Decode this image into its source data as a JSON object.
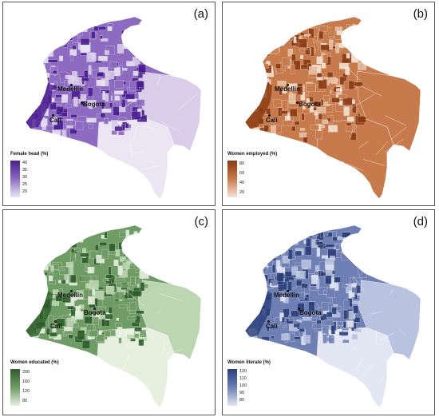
{
  "panels": [
    {
      "label": "(a)",
      "legend_title": "Female head (%)",
      "ticks": [
        "40",
        "35",
        "30",
        "25",
        "20"
      ],
      "colors": {
        "dark": "#4b1e8f",
        "mid": "#8c6bc0",
        "light": "#d9cdea",
        "pale": "#ece6f4"
      }
    },
    {
      "label": "(b)",
      "legend_title": "Women employed (%)",
      "ticks": [
        "80",
        "60",
        "40",
        "20"
      ],
      "colors": {
        "dark": "#8a3a12",
        "mid": "#c77a4c",
        "light": "#e8bfa1",
        "pale": "#f6e3d4"
      }
    },
    {
      "label": "(c)",
      "legend_title": "Women educated (%)",
      "ticks": [
        "200",
        "160",
        "120",
        "80"
      ],
      "colors": {
        "dark": "#2d5e2a",
        "mid": "#6f9b64",
        "light": "#bcd6b2",
        "pale": "#e5f0df"
      }
    },
    {
      "label": "(d)",
      "legend_title": "Women literate (%)",
      "ticks": [
        "120",
        "110",
        "100",
        "90",
        "80"
      ],
      "colors": {
        "dark": "#2b3f7a",
        "mid": "#6e7fb3",
        "light": "#b9c2de",
        "pale": "#e2e7f3"
      }
    }
  ],
  "cities": [
    "Medellin",
    "Bogota",
    "Cali"
  ]
}
